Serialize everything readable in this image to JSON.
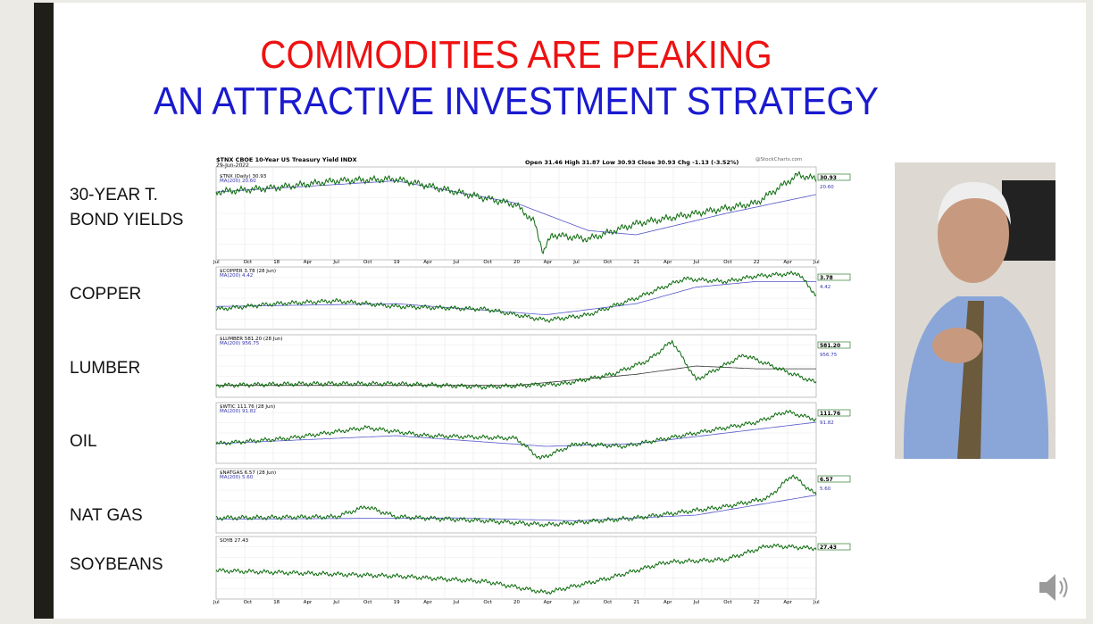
{
  "slide": {
    "title_line1": "COMMODITIES ARE PEAKING",
    "title_line2": "AN ATTRACTIVE INVESTMENT STRATEGY",
    "labels": [
      "30-YEAR T.",
      "BOND YIELDS",
      "COPPER",
      "LUMBER",
      "OIL",
      "NAT GAS",
      "SOYBEANS"
    ],
    "chart": {
      "header": "$TNX CBOE 10-Year US Treasury Yield INDX",
      "date": "29-Jun-2022",
      "quote": "Open 31.46  High 31.87  Low 30.93  Close 30.93  Chg -1.13 (-3.52%)",
      "source": "@StockCharts.com",
      "panels": [
        {
          "name": "$TNX (Daily) 30.93",
          "ma": "MA(200) 20.60",
          "last": "30.93",
          "ma_last": "20.60"
        },
        {
          "name": "$COPPER 3.78 (28 Jun)",
          "ma": "MA(200) 4.42",
          "last": "3.78",
          "ma_last": "4.42"
        },
        {
          "name": "$LUMBER 581.20 (28 Jun)",
          "ma": "MA(200) 956.75",
          "last": "581.20",
          "ma_last": "956.75"
        },
        {
          "name": "$WTIC 111.76 (28 Jun)",
          "ma": "MA(200) 91.82",
          "last": "111.76",
          "ma_last": "91.82"
        },
        {
          "name": "$NATGAS 6.57 (28 Jun)",
          "ma": "MA(200) 5.60",
          "last": "6.57",
          "ma_last": "5.60"
        },
        {
          "name": "SOYB 27.43",
          "ma": null,
          "last": "27.43",
          "ma_last": null
        }
      ],
      "x_labels": [
        "Jul",
        "Oct",
        "18",
        "Apr",
        "Jul",
        "Oct",
        "19",
        "Apr",
        "Jul",
        "Oct",
        "20",
        "Apr",
        "Jul",
        "Oct",
        "21",
        "Apr",
        "Jul",
        "Oct",
        "22",
        "Apr",
        "Jul"
      ]
    }
  }
}
